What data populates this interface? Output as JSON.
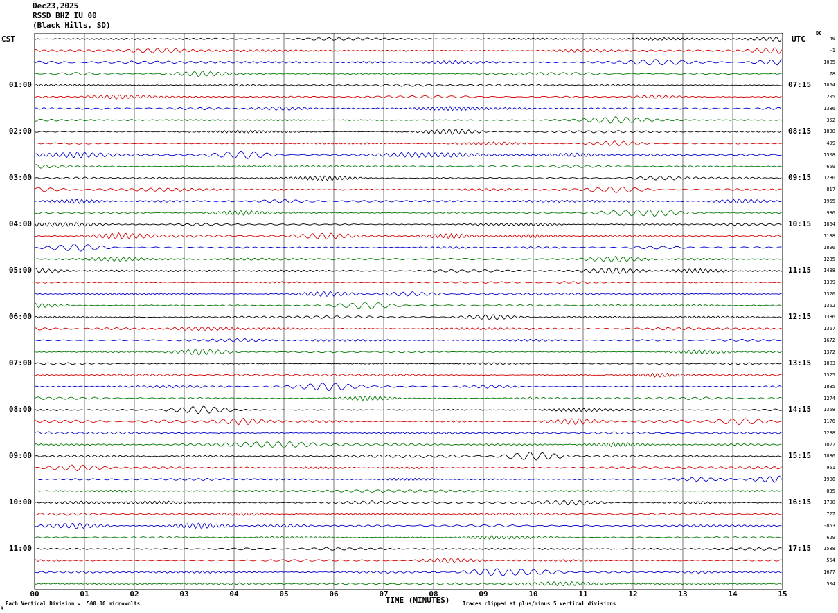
{
  "title": {
    "date": "Dec23,2025",
    "station": "RSSD BHZ IU 00",
    "location": "(Black Hills, SD)"
  },
  "axes": {
    "left_header": "CST",
    "right_header": "UTC",
    "dc_label": "DC",
    "x_axis_title": "TIME (MINUTES)",
    "x_ticks": [
      "00",
      "01",
      "02",
      "03",
      "04",
      "05",
      "06",
      "07",
      "08",
      "09",
      "10",
      "11",
      "12",
      "13",
      "14",
      "15"
    ],
    "left_labels": [
      {
        "row": 4,
        "text": "01:00"
      },
      {
        "row": 8,
        "text": "02:00"
      },
      {
        "row": 12,
        "text": "03:00"
      },
      {
        "row": 16,
        "text": "04:00"
      },
      {
        "row": 20,
        "text": "05:00"
      },
      {
        "row": 24,
        "text": "06:00"
      },
      {
        "row": 28,
        "text": "07:00"
      },
      {
        "row": 32,
        "text": "08:00"
      },
      {
        "row": 36,
        "text": "09:00"
      },
      {
        "row": 40,
        "text": "10:00"
      },
      {
        "row": 44,
        "text": "11:00"
      }
    ],
    "right_labels": [
      {
        "row": 4,
        "text": "07:15"
      },
      {
        "row": 8,
        "text": "08:15"
      },
      {
        "row": 12,
        "text": "09:15"
      },
      {
        "row": 16,
        "text": "10:15"
      },
      {
        "row": 20,
        "text": "11:15"
      },
      {
        "row": 24,
        "text": "12:15"
      },
      {
        "row": 28,
        "text": "13:15"
      },
      {
        "row": 32,
        "text": "14:15"
      },
      {
        "row": 36,
        "text": "15:15"
      },
      {
        "row": 40,
        "text": "16:15"
      },
      {
        "row": 44,
        "text": "17:15"
      }
    ]
  },
  "footer": {
    "left": "Each Vertical Division =  500.00 microvolts",
    "right": "Traces clipped at plus/minus 5 vertical divisions",
    "corner_mark": "A"
  },
  "colors": {
    "background": "#ffffff",
    "grid": "#777777",
    "border": "#000000"
  },
  "chart_data": {
    "type": "line",
    "subtype": "helicorder-seismogram",
    "rows": 48,
    "minutes_per_row": 15,
    "xlim": [
      0,
      15
    ],
    "xlabel": "TIME (MINUTES)",
    "grid": "vertical gridline every 1 minute",
    "trace_colors": [
      "#000000",
      "#d40000",
      "#0000cc",
      "#007700"
    ],
    "color_cycle_per_row": [
      "black",
      "red",
      "blue",
      "green"
    ],
    "microvolts_per_division": "500.00",
    "clip_divisions": 5,
    "dc_offsets": [
      46,
      -1,
      1085,
      78,
      1864,
      205,
      1386,
      352,
      1838,
      499,
      1508,
      669,
      1280,
      817,
      1955,
      986,
      1864,
      1138,
      1896,
      1235,
      1488,
      1309,
      1320,
      1362,
      1386,
      1367,
      1672,
      1372,
      1883,
      1325,
      1885,
      1274,
      1358,
      1176,
      1288,
      1077,
      1836,
      951,
      1986,
      835,
      1798,
      727,
      -853,
      629,
      1588,
      564,
      1677,
      504
    ],
    "waveform": {
      "seed": 1223,
      "style": "continuous background seismic noise with intermittent higher-amplitude bursts, clipped at plus/minus 5 divisions"
    }
  },
  "layout_values": {
    "plot": {
      "x0": 50,
      "x1": 1130,
      "y0": 48,
      "y1": 852
    }
  }
}
